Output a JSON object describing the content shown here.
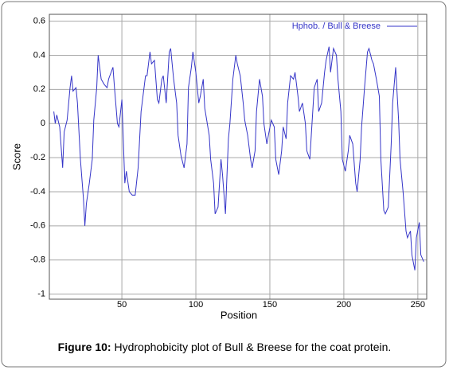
{
  "chart_data": {
    "type": "line",
    "x_label": "Position",
    "y_label": "Score",
    "caption_label": "Figure 10:",
    "caption_text": "Hydrophobicity plot of Bull & Breese for the coat protein.",
    "xlim": [
      1,
      256
    ],
    "ylim": [
      -1.03,
      0.64
    ],
    "xticks": [
      50,
      100,
      150,
      200,
      250
    ],
    "yticks": [
      0.6,
      0.4,
      0.2,
      0,
      -0.2,
      -0.4,
      -0.6,
      -0.8,
      -1
    ],
    "grid": true,
    "legend": "upper right",
    "series": [
      {
        "name": "Hphob. / Bull & Breese",
        "color": "#3535c8",
        "x": [
          4,
          5,
          6,
          8,
          10,
          11,
          13,
          15,
          16,
          17,
          19,
          20,
          22,
          24,
          25,
          26,
          28,
          30,
          31,
          33,
          34,
          36,
          38,
          40,
          41,
          44,
          45,
          47,
          48,
          50,
          52,
          53,
          55,
          57,
          59,
          61,
          63,
          66,
          67,
          69,
          70,
          72,
          74,
          75,
          77,
          78,
          80,
          82,
          83,
          85,
          87,
          88,
          90,
          92,
          94,
          95,
          97,
          98,
          100,
          102,
          103,
          105,
          106,
          109,
          110,
          112,
          113,
          115,
          117,
          118,
          120,
          122,
          123,
          125,
          127,
          128,
          130,
          132,
          133,
          135,
          137,
          138,
          140,
          141,
          143,
          145,
          146,
          148,
          149,
          151,
          153,
          154,
          156,
          158,
          159,
          161,
          162,
          164,
          166,
          167,
          169,
          170,
          172,
          174,
          175,
          177,
          178,
          180,
          182,
          183,
          185,
          187,
          188,
          190,
          191,
          193,
          195,
          196,
          198,
          199,
          201,
          203,
          204,
          206,
          208,
          209,
          211,
          212,
          214,
          216,
          217,
          219,
          220,
          222,
          224,
          225,
          227,
          228,
          230,
          232,
          233,
          235,
          237,
          238,
          240,
          242,
          243,
          245,
          246,
          248,
          249,
          251,
          252,
          254
        ],
        "values": [
          0.07,
          0,
          0.05,
          -0.02,
          -0.26,
          -0.05,
          0.02,
          0.21,
          0.28,
          0.19,
          0.21,
          0.12,
          -0.21,
          -0.44,
          -0.6,
          -0.47,
          -0.35,
          -0.21,
          0.02,
          0.21,
          0.4,
          0.26,
          0.23,
          0.21,
          0.26,
          0.33,
          0.21,
          0,
          -0.02,
          0.14,
          -0.35,
          -0.28,
          -0.4,
          -0.42,
          -0.42,
          -0.26,
          0.07,
          0.28,
          0.28,
          0.42,
          0.35,
          0.37,
          0.14,
          0.12,
          0.26,
          0.28,
          0.12,
          0.42,
          0.44,
          0.26,
          0.12,
          -0.07,
          -0.19,
          -0.26,
          -0.12,
          0.21,
          0.33,
          0.42,
          0.3,
          0.12,
          0.16,
          0.26,
          0.09,
          -0.07,
          -0.21,
          -0.35,
          -0.53,
          -0.49,
          -0.21,
          -0.3,
          -0.53,
          -0.09,
          0,
          0.26,
          0.4,
          0.35,
          0.28,
          0.12,
          0.02,
          -0.07,
          -0.21,
          -0.26,
          -0.16,
          0.07,
          0.26,
          0.16,
          0,
          -0.12,
          -0.07,
          0.02,
          -0.02,
          -0.21,
          -0.3,
          -0.16,
          -0.02,
          -0.09,
          0.12,
          0.28,
          0.26,
          0.3,
          0.16,
          0.07,
          0.12,
          0,
          -0.16,
          -0.21,
          -0.07,
          0.21,
          0.26,
          0.07,
          0.12,
          0.3,
          0.37,
          0.45,
          0.3,
          0.44,
          0.4,
          0.26,
          0.07,
          -0.21,
          -0.28,
          -0.16,
          -0.07,
          -0.12,
          -0.35,
          -0.4,
          -0.21,
          -0.02,
          0.21,
          0.42,
          0.44,
          0.37,
          0.35,
          0.26,
          0.16,
          -0.21,
          -0.51,
          -0.53,
          -0.49,
          -0.12,
          0.12,
          0.33,
          0.02,
          -0.21,
          -0.4,
          -0.63,
          -0.67,
          -0.63,
          -0.77,
          -0.86,
          -0.67,
          -0.58,
          -0.77,
          -0.81
        ]
      }
    ]
  }
}
